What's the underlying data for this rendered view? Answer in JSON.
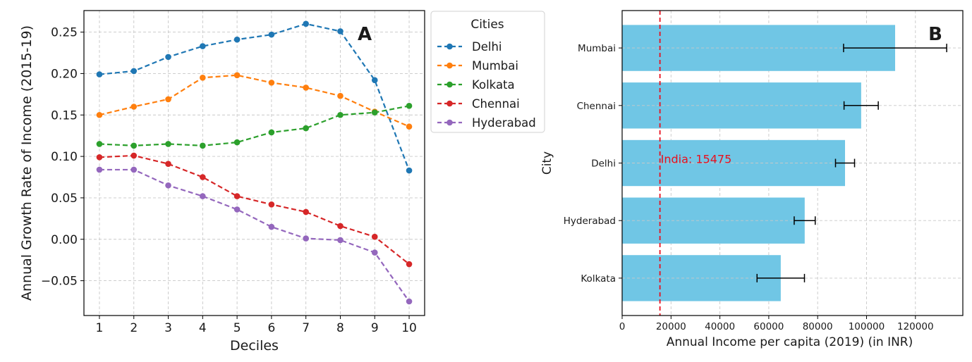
{
  "chart_data": [
    {
      "type": "line",
      "panel_label": "A",
      "title": "",
      "xlabel": "Deciles",
      "ylabel": "Annual Growth Rate of Income (2015-19)",
      "x": [
        1,
        2,
        3,
        4,
        5,
        6,
        7,
        8,
        9,
        10
      ],
      "xticks": [
        "1",
        "2",
        "3",
        "4",
        "5",
        "6",
        "7",
        "8",
        "9",
        "10"
      ],
      "yticks": [
        -0.05,
        0.0,
        0.05,
        0.1,
        0.15,
        0.2,
        0.25
      ],
      "ytick_labels": [
        "−0.05",
        "0.00",
        "0.05",
        "0.10",
        "0.15",
        "0.20",
        "0.25"
      ],
      "xlim": [
        0.55,
        10.45
      ],
      "ylim": [
        -0.092,
        0.276
      ],
      "grid": true,
      "line_style": "dashed",
      "marker": "circle",
      "legend": {
        "title": "Cities",
        "placement": "outside-right"
      },
      "series": [
        {
          "name": "Delhi",
          "color": "#1f77b4",
          "values": [
            0.199,
            0.203,
            0.22,
            0.233,
            0.241,
            0.247,
            0.26,
            0.251,
            0.192,
            0.083
          ]
        },
        {
          "name": "Mumbai",
          "color": "#ff7f0e",
          "values": [
            0.15,
            0.16,
            0.169,
            0.195,
            0.198,
            0.189,
            0.183,
            0.173,
            0.154,
            0.136
          ]
        },
        {
          "name": "Kolkata",
          "color": "#2ca02c",
          "values": [
            0.115,
            0.113,
            0.115,
            0.113,
            0.117,
            0.129,
            0.134,
            0.15,
            0.153,
            0.161
          ]
        },
        {
          "name": "Chennai",
          "color": "#d62728",
          "values": [
            0.099,
            0.101,
            0.091,
            0.075,
            0.052,
            0.042,
            0.033,
            0.016,
            0.003,
            -0.03
          ]
        },
        {
          "name": "Hyderabad",
          "color": "#9467bd",
          "values": [
            0.084,
            0.084,
            0.065,
            0.052,
            0.036,
            0.015,
            0.001,
            -0.001,
            -0.016,
            -0.075
          ]
        }
      ]
    },
    {
      "type": "bar",
      "orientation": "horizontal",
      "panel_label": "B",
      "title": "",
      "xlabel": "Annual Income per capita (2019) (in INR)",
      "ylabel": "City",
      "categories": [
        "Kolkata",
        "Hyderabad",
        "Delhi",
        "Chennai",
        "Mumbai"
      ],
      "values": [
        64900,
        74700,
        91200,
        97800,
        111700
      ],
      "errors": [
        9700,
        4300,
        3900,
        7000,
        21100
      ],
      "bar_color": "#70c6e5",
      "xticks": [
        0,
        20000,
        40000,
        60000,
        80000,
        100000,
        120000
      ],
      "xtick_labels": [
        "0",
        "20000",
        "40000",
        "60000",
        "80000",
        "100000",
        "120000"
      ],
      "xlim": [
        0,
        139400
      ],
      "grid": true,
      "reference_line": {
        "value": 15475,
        "label": "India: 15475",
        "color": "#e8101e",
        "style": "dashed"
      }
    }
  ]
}
